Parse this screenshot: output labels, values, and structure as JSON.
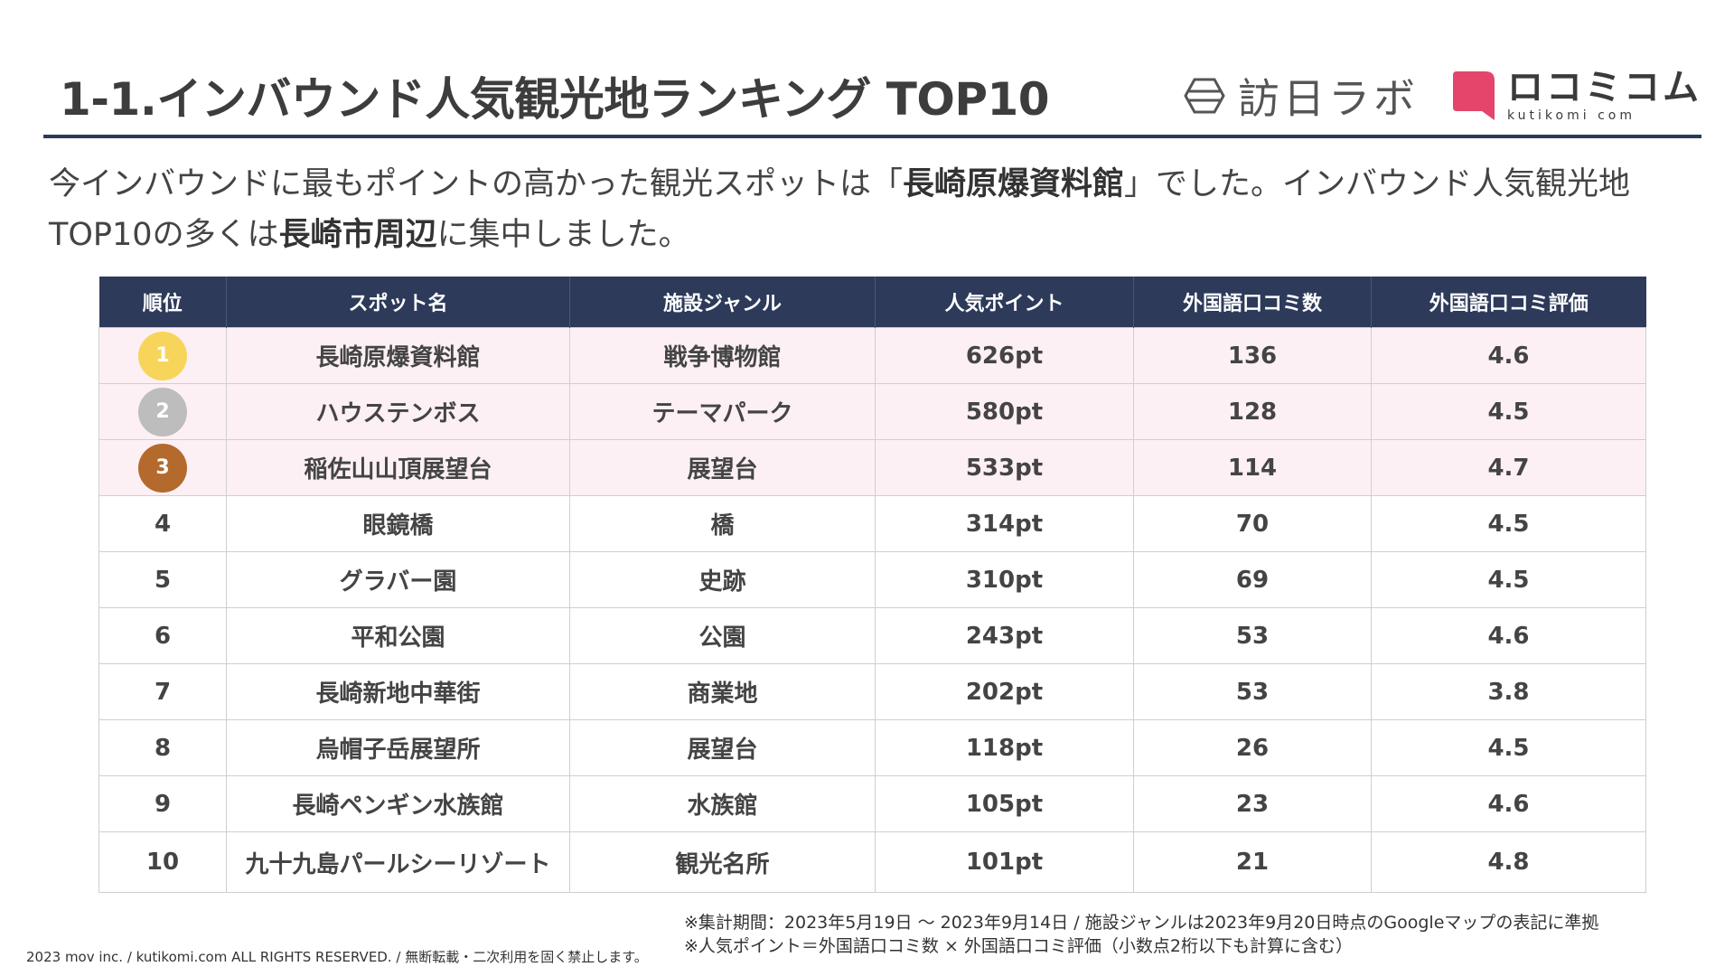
{
  "header": {
    "title": "1-1.インバウンド人気観光地ランキング TOP10",
    "logo_houjin": "訪日ラボ",
    "logo_kuchikomi_main": "ロコミコム",
    "logo_kuchikomi_sub": "kutikomi com"
  },
  "lead": {
    "part1": "今インバウンドに最もポイントの高かった観光スポットは「",
    "highlight1": "長崎原爆資料館",
    "part2": "」でした。インバウンド人気観光地TOP10の多くは",
    "highlight2": "長崎市周辺",
    "part3": "に集中しました。"
  },
  "table": {
    "headers": [
      "順位",
      "スポット名",
      "施設ジャンル",
      "人気ポイント",
      "外国語口コミ数",
      "外国語口コミ評価"
    ],
    "rows": [
      {
        "rank": "1",
        "name": "長崎原爆資料館",
        "genre": "戦争博物館",
        "points": "626pt",
        "reviews": "136",
        "rating": "4.6"
      },
      {
        "rank": "2",
        "name": "ハウステンボス",
        "genre": "テーマパーク",
        "points": "580pt",
        "reviews": "128",
        "rating": "4.5"
      },
      {
        "rank": "3",
        "name": "稲佐山山頂展望台",
        "genre": "展望台",
        "points": "533pt",
        "reviews": "114",
        "rating": "4.7"
      },
      {
        "rank": "4",
        "name": "眼鏡橋",
        "genre": "橋",
        "points": "314pt",
        "reviews": "70",
        "rating": "4.5"
      },
      {
        "rank": "5",
        "name": "グラバー園",
        "genre": "史跡",
        "points": "310pt",
        "reviews": "69",
        "rating": "4.5"
      },
      {
        "rank": "6",
        "name": "平和公園",
        "genre": "公園",
        "points": "243pt",
        "reviews": "53",
        "rating": "4.6"
      },
      {
        "rank": "7",
        "name": "長崎新地中華街",
        "genre": "商業地",
        "points": "202pt",
        "reviews": "53",
        "rating": "3.8"
      },
      {
        "rank": "8",
        "name": "烏帽子岳展望所",
        "genre": "展望台",
        "points": "118pt",
        "reviews": "26",
        "rating": "4.5"
      },
      {
        "rank": "9",
        "name": "長崎ペンギン水族館",
        "genre": "水族館",
        "points": "105pt",
        "reviews": "23",
        "rating": "4.6"
      },
      {
        "rank": "10",
        "name": "九十九島パールシーリゾート",
        "genre": "観光名所",
        "points": "101pt",
        "reviews": "21",
        "rating": "4.8"
      }
    ],
    "medal_colors": [
      "#f7d55a",
      "#bdbdbd",
      "#b46a2c"
    ]
  },
  "footer": {
    "copyright": "2023 mov inc. / kutikomi.com ALL RIGHTS RESERVED. / 無断転載・二次利用を固く禁止します。",
    "note1": "※集計期間：2023年5月19日 〜 2023年9月14日 / 施設ジャンルは2023年9月20日時点のGoogleマップの表記に準拠",
    "note2": "※人気ポイント＝外国語口コミ数 × 外国語口コミ評価（小数点2桁以下も計算に含む）"
  }
}
